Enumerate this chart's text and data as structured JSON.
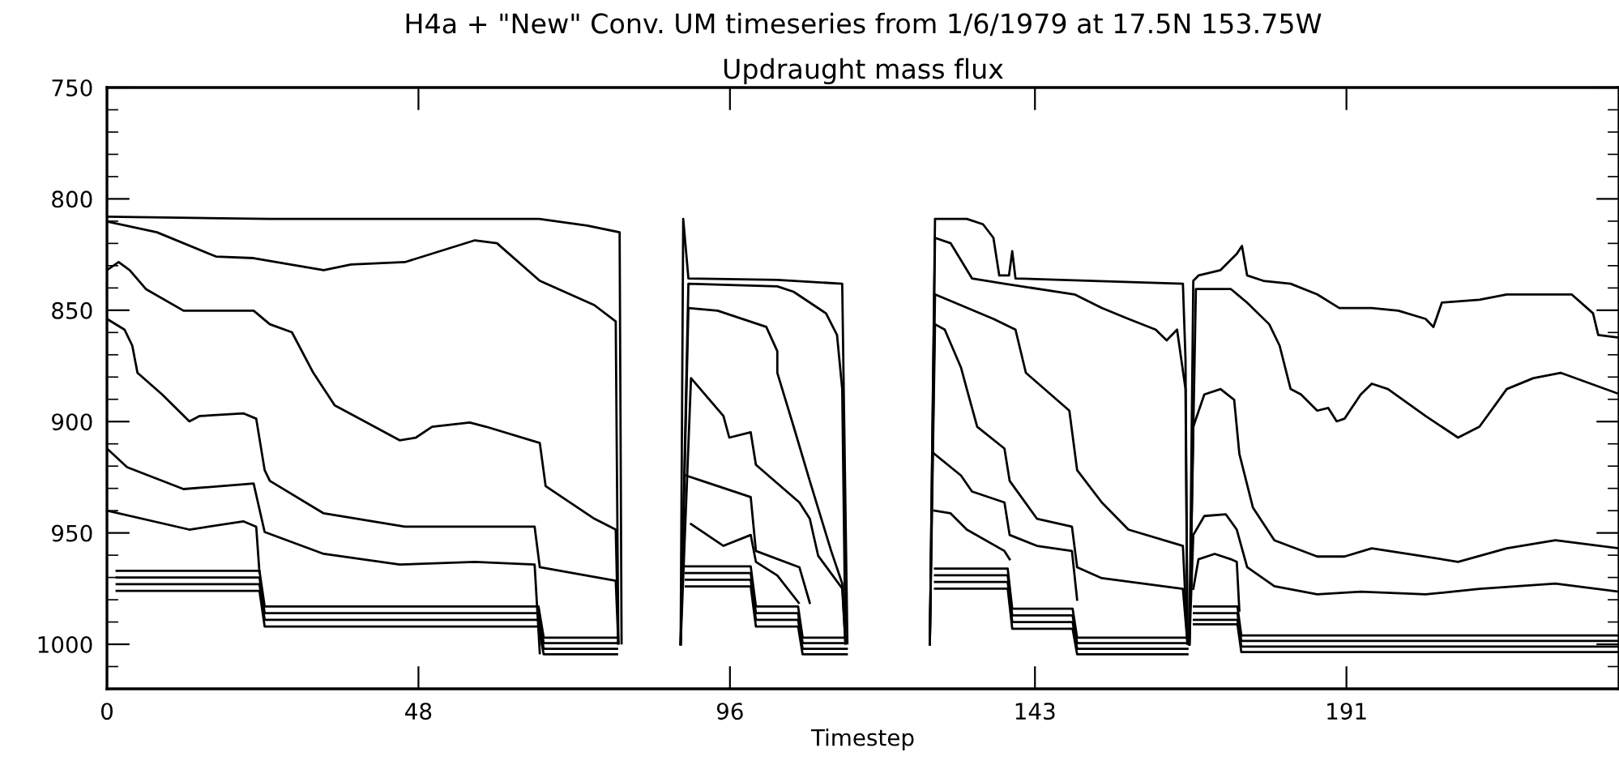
{
  "chart_data": {
    "type": "line",
    "title": "H4a + \"New\" Conv. UM timeseries from 1/6/1979 at 17.5N 153.75W",
    "subtitle": "Updraught mass flux",
    "xlabel": "Timestep",
    "xlim": [
      0,
      233
    ],
    "xticks": [
      0,
      48,
      96,
      143,
      191
    ],
    "ylim": [
      1020,
      750
    ],
    "yticks": [
      750,
      {
        "value": 760,
        "label": null
      },
      {
        "value": 770,
        "label": null
      },
      {
        "value": 780,
        "label": null
      },
      {
        "value": 790,
        "label": null
      },
      800,
      {
        "value": 810,
        "label": null
      },
      {
        "value": 820,
        "label": null
      },
      {
        "value": 830,
        "label": null
      },
      {
        "value": 840,
        "label": null
      },
      850,
      {
        "value": 860,
        "label": null
      },
      {
        "value": 870,
        "label": null
      },
      {
        "value": 880,
        "label": null
      },
      {
        "value": 890,
        "label": null
      },
      900,
      {
        "value": 910,
        "label": null
      },
      {
        "value": 920,
        "label": null
      },
      {
        "value": 930,
        "label": null
      },
      {
        "value": 940,
        "label": null
      },
      950,
      {
        "value": 960,
        "label": null
      },
      {
        "value": 970,
        "label": null
      },
      {
        "value": 980,
        "label": null
      },
      {
        "value": 990,
        "label": null
      },
      1000,
      {
        "value": 1010,
        "label": null
      }
    ],
    "line_style": "solid",
    "series": [
      {
        "color": "#000000",
        "x": [
          0,
          25,
          66.6,
          74,
          79,
          79.3
        ],
        "values": [
          808,
          809,
          809,
          812,
          815,
          999.6
        ]
      },
      {
        "color": "#000000",
        "x": [
          0,
          7.7,
          16.8,
          22.6,
          33.4,
          37.6,
          45.9,
          56.7,
          60.1,
          66.7,
          75.1,
          78.4,
          78.8
        ],
        "values": [
          810.2,
          815.0,
          825.9,
          826.6,
          832.0,
          829.5,
          828.4,
          818.6,
          819.9,
          836.8,
          847.7,
          855.0,
          999.6
        ]
      },
      {
        "color": "#000000",
        "x": [
          0,
          1.8,
          3.5,
          6.0,
          11.8,
          22.6,
          25.1,
          28.5,
          31.8,
          35.1,
          45.1,
          47.6,
          50.1,
          55.9,
          58.4,
          66.7,
          67.6,
          75.1,
          78.4,
          78.8
        ],
        "values": [
          832.0,
          828.4,
          832.0,
          840.5,
          850.2,
          850.2,
          856.3,
          859.9,
          878.1,
          892.7,
          908.4,
          907.2,
          902.3,
          900.4,
          902.3,
          909.6,
          929.0,
          943.6,
          948.5,
          999.6
        ]
      },
      {
        "color": "#000000",
        "x": [
          0,
          2.7,
          3.9,
          4.7,
          8.5,
          12.7,
          14.3,
          21.0,
          23.0,
          24.3,
          25.1,
          33.4,
          45.9,
          65.9,
          66.7,
          78.4,
          78.8
        ],
        "values": [
          853.9,
          858.7,
          865.9,
          878.1,
          887.8,
          899.9,
          897.5,
          896.3,
          898.7,
          921.8,
          926.6,
          941.2,
          947.2,
          947.2,
          965.4,
          971.5,
          999.6
        ]
      },
      {
        "color": "#000000",
        "x": [
          0,
          3.1,
          11.8,
          22.6,
          24.3,
          33.4,
          45.1,
          56.7,
          65.9,
          66.7
        ],
        "values": [
          912.1,
          920.5,
          930.3,
          927.8,
          949.6,
          959.4,
          964.2,
          963.0,
          964.2,
          1004.0
        ]
      },
      {
        "color": "#000000",
        "x": [
          0,
          12.7,
          21.0,
          23.0,
          23.5
        ],
        "values": [
          940.0,
          948.5,
          944.8,
          947.2,
          967.8
        ]
      },
      {
        "color": "#000000",
        "x": [
          1.5,
          23.5,
          24.3,
          66.5,
          67.3,
          78.6
        ],
        "values": [
          967,
          967,
          983,
          983,
          997,
          997
        ]
      },
      {
        "color": "#000000",
        "x": [
          1.5,
          23.5,
          24.3,
          66.5,
          67.3,
          78.6
        ],
        "values": [
          970,
          970,
          986,
          986,
          999.5,
          999.5
        ]
      },
      {
        "color": "#000000",
        "x": [
          1.5,
          23.5,
          24.3,
          66.5,
          67.3,
          78.6
        ],
        "values": [
          973,
          973,
          989,
          989,
          1002,
          1002
        ]
      },
      {
        "color": "#000000",
        "x": [
          1.5,
          23.5,
          24.3,
          66.5,
          67.3,
          78.6
        ],
        "values": [
          976,
          976,
          992,
          992,
          1004.5,
          1004.5
        ]
      },
      {
        "color": "#000000",
        "x": [
          88.4,
          88.8,
          89.6,
          103.3,
          113.3,
          114.1
        ],
        "values": [
          1000,
          809,
          835.7,
          836.4,
          838.1,
          999.6
        ]
      },
      {
        "color": "#000000",
        "x": [
          88.4,
          89.6,
          103.3,
          105.8,
          110.8,
          112.5,
          113.3,
          113.8
        ],
        "values": [
          1000,
          838.1,
          839.3,
          841.7,
          851.4,
          861.1,
          885.4,
          999.6
        ]
      },
      {
        "color": "#000000",
        "x": [
          88.4,
          89.6,
          94.1,
          101.6,
          103.3,
          103.3,
          105.8,
          108.3,
          111.6,
          113.3,
          113.8
        ],
        "values": [
          1000,
          849.0,
          850.2,
          857.5,
          868.4,
          878.1,
          902.1,
          926.6,
          958.1,
          972.7,
          999.6
        ]
      },
      {
        "color": "#000000",
        "x": [
          88.4,
          90.0,
          95.0,
          95.9,
          99.2,
          100.0,
          106.7,
          108.3,
          109.6,
          113.3,
          113.8
        ],
        "values": [
          1000,
          880.5,
          897.5,
          907.2,
          904.8,
          919.4,
          936.3,
          943.6,
          960.3,
          974.9,
          999.6
        ]
      },
      {
        "color": "#000000",
        "x": [
          89.2,
          91.7,
          99.2,
          100.0,
          106.7,
          108.3
        ],
        "values": [
          924.2,
          926.6,
          933.9,
          958.1,
          965.4,
          981.4
        ]
      },
      {
        "color": "#000000",
        "x": [
          90.0,
          95.0,
          99.2,
          100.0,
          103.3,
          106.6
        ],
        "values": [
          946.0,
          955.8,
          950.9,
          963.0,
          969.1,
          981.4
        ]
      },
      {
        "color": "#000000",
        "x": [
          89.2,
          99.2,
          100,
          106.5,
          107.2,
          114
        ],
        "values": [
          965,
          965,
          983,
          983,
          997,
          997
        ]
      },
      {
        "color": "#000000",
        "x": [
          89.2,
          99.2,
          100,
          106.5,
          107.2,
          114
        ],
        "values": [
          968,
          968,
          986,
          986,
          999.5,
          999.5
        ]
      },
      {
        "color": "#000000",
        "x": [
          89.2,
          99.2,
          100,
          106.5,
          107.2,
          114
        ],
        "values": [
          971,
          971,
          989,
          989,
          1002,
          1002
        ]
      },
      {
        "color": "#000000",
        "x": [
          89.2,
          99.2,
          100,
          106.5,
          107.2,
          114
        ],
        "values": [
          974,
          974,
          992,
          992,
          1004.5,
          1004.5
        ]
      },
      {
        "color": "#000000",
        "x": [
          126.8,
          127.6,
          132.5,
          135.0,
          136.6,
          137.5,
          139.0,
          139.5,
          140.0,
          165.8,
          166.2,
          166.5
        ],
        "values": [
          1000,
          809.0,
          809.0,
          811.4,
          817.5,
          834.4,
          834.4,
          823.5,
          835.7,
          838.1,
          872.1,
          999.6
        ]
      },
      {
        "color": "#000000",
        "x": [
          126.8,
          127.6,
          130.0,
          133.3,
          138.3,
          149.1,
          153.3,
          157.4,
          161.6,
          163.3,
          164.9,
          166.2,
          166.5
        ],
        "values": [
          1000,
          817.5,
          819.9,
          835.7,
          838.1,
          842.9,
          849.0,
          853.9,
          858.7,
          863.5,
          858.7,
          885.4,
          999.6
        ]
      },
      {
        "color": "#000000",
        "x": [
          126.8,
          127.6,
          136.6,
          140.0,
          141.6,
          148.3,
          149.5,
          153.3,
          157.4,
          165.8,
          166.5
        ],
        "values": [
          1000,
          842.9,
          853.9,
          858.7,
          878.1,
          895.1,
          921.8,
          936.3,
          948.5,
          955.8,
          999.6
        ]
      },
      {
        "color": "#000000",
        "x": [
          126.8,
          127.6,
          129.1,
          131.6,
          132.5,
          134.1,
          138.3,
          139.1,
          143.3,
          148.7,
          149.5,
          153.3,
          165.8,
          166.5
        ],
        "values": [
          1000,
          856.3,
          858.7,
          875.7,
          885.4,
          902.3,
          912.1,
          926.6,
          943.6,
          947.2,
          965.4,
          970.3,
          975.1,
          999.6
        ]
      },
      {
        "color": "#000000",
        "x": [
          127.5,
          131.6,
          133.3,
          138.3,
          139.1,
          143.3,
          148.7,
          149.5
        ],
        "values": [
          914.5,
          924.2,
          931.4,
          936.3,
          950.9,
          955.8,
          958.1,
          980.0
        ]
      },
      {
        "color": "#000000",
        "x": [
          127.5,
          130.0,
          132.5,
          138.3,
          139.1
        ],
        "values": [
          940.0,
          941.2,
          948.5,
          958.1,
          961.8
        ]
      },
      {
        "color": "#000000",
        "x": [
          127.6,
          138.8,
          139.5,
          148.8,
          149.5,
          166.5
        ],
        "values": [
          966,
          966,
          984,
          984,
          997,
          997
        ]
      },
      {
        "color": "#000000",
        "x": [
          127.6,
          138.8,
          139.5,
          148.8,
          149.5,
          166.5
        ],
        "values": [
          969,
          969,
          987,
          987,
          999.5,
          999.5
        ]
      },
      {
        "color": "#000000",
        "x": [
          127.6,
          138.8,
          139.5,
          148.8,
          149.5,
          166.5
        ],
        "values": [
          972,
          972,
          990,
          990,
          1002,
          1002
        ]
      },
      {
        "color": "#000000",
        "x": [
          127.6,
          138.8,
          139.5,
          148.8,
          149.5,
          166.5
        ],
        "values": [
          975,
          975,
          993,
          993,
          1004.5,
          1004.5
        ]
      },
      {
        "color": "#000000",
        "x": [
          166.8,
          167.4,
          168.2,
          171.6,
          174.1,
          174.9,
          175.7,
          178.2,
          182.4,
          186.5,
          189.9,
          194.9,
          199.0,
          203.2,
          204.4,
          205.7,
          211.5,
          215.7,
          225.7,
          229.0,
          229.8,
          233
        ],
        "values": [
          1000,
          836.8,
          834.4,
          832.0,
          824.7,
          821.1,
          834.4,
          836.8,
          838.1,
          842.9,
          849.0,
          849.0,
          850.2,
          853.9,
          857.5,
          846.6,
          845.3,
          842.9,
          842.9,
          851.4,
          861.1,
          862.3
        ]
      },
      {
        "color": "#000000",
        "x": [
          166.8,
          167.8,
          173.2,
          175.7,
          179.1,
          180.7,
          182.4,
          184.0,
          186.5,
          188.2,
          189.5,
          190.7,
          193.2,
          194.9,
          197.4,
          203.2,
          208.2,
          211.5,
          215.7,
          219.8,
          224.0,
          233
        ],
        "values": [
          1000,
          840.5,
          840.5,
          846.6,
          856.3,
          865.9,
          885.4,
          887.8,
          895.1,
          893.9,
          899.9,
          898.7,
          887.8,
          883.0,
          885.4,
          897.5,
          907.2,
          902.3,
          885.4,
          880.5,
          878.1,
          887.6
        ]
      },
      {
        "color": "#000000",
        "x": [
          166.8,
          167.4,
          169.1,
          171.6,
          173.7,
          174.5,
          176.6,
          179.9,
          186.5,
          190.7,
          194.9,
          203.2,
          208.2,
          215.7,
          223.2,
          233
        ],
        "values": [
          1000,
          902.3,
          887.8,
          885.4,
          890.2,
          914.5,
          938.7,
          953.3,
          960.6,
          960.6,
          956.9,
          960.6,
          963.0,
          956.9,
          953.3,
          956.9
        ]
      },
      {
        "color": "#000000",
        "x": [
          166.8,
          167.4,
          169.1,
          172.4,
          174.1,
          175.7,
          179.9,
          186.5,
          193.2,
          203.2,
          211.5,
          223.2,
          233
        ],
        "values": [
          1000,
          950.9,
          942.4,
          941.6,
          948.5,
          965.4,
          973.9,
          977.6,
          976.4,
          977.6,
          975.1,
          972.7,
          976.4
        ]
      },
      {
        "color": "#000000",
        "x": [
          167.4,
          168.2,
          170.7,
          173.2,
          174.1,
          174.5
        ],
        "values": [
          975.1,
          961.8,
          959.4,
          961.8,
          963.0,
          984.9
        ]
      },
      {
        "color": "#000000",
        "x": [
          167.5,
          174.2,
          174.8,
          233
        ],
        "values": [
          983,
          983,
          996,
          996
        ]
      },
      {
        "color": "#000000",
        "x": [
          167.5,
          174.2,
          174.8,
          233
        ],
        "values": [
          986,
          986,
          998.5,
          998.5
        ]
      },
      {
        "color": "#000000",
        "x": [
          167.5,
          174.2,
          174.8,
          233
        ],
        "values": [
          989,
          989,
          1001,
          1001
        ]
      },
      {
        "color": "#000000",
        "x": [
          167.5,
          174.2,
          174.8,
          233
        ],
        "values": [
          991,
          991,
          1003.5,
          1003.5
        ]
      }
    ]
  }
}
